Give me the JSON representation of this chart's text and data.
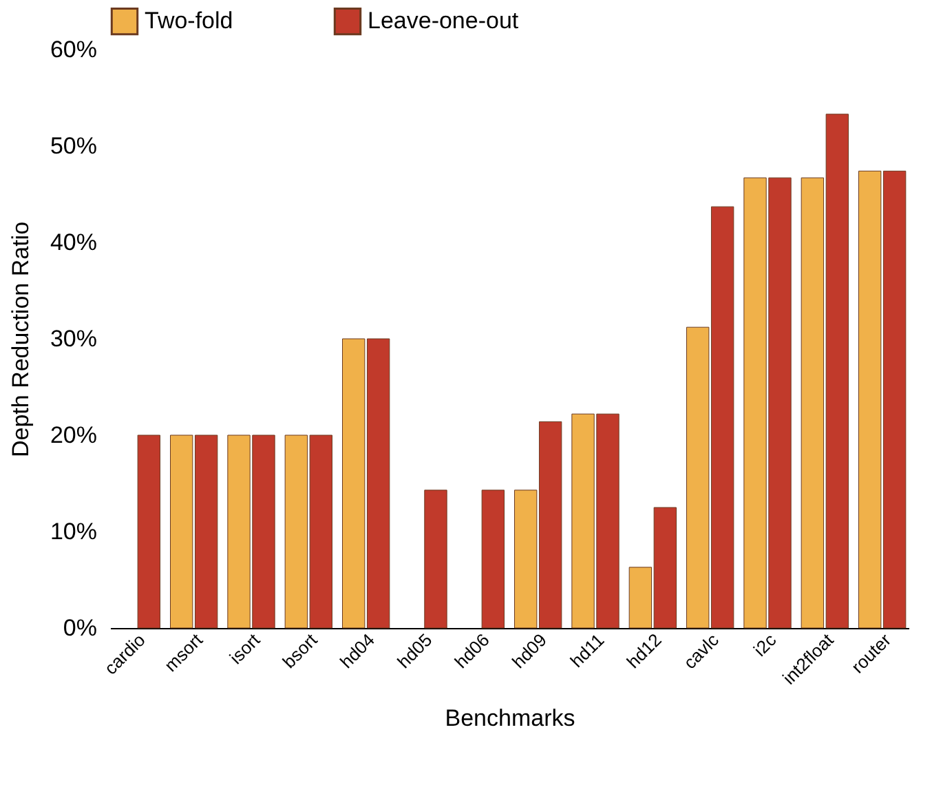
{
  "chart_data": {
    "type": "bar",
    "xlabel": "Benchmarks",
    "ylabel": "Depth Reduction Ratio",
    "categories": [
      "cardio",
      "msort",
      "isort",
      "bsort",
      "hd04",
      "hd05",
      "hd06",
      "hd09",
      "hd11",
      "hd12",
      "cavlc",
      "i2c",
      "int2float",
      "router"
    ],
    "series": [
      {
        "name": "Two-fold",
        "color": "#f0b14a",
        "values": [
          null,
          20,
          20,
          20,
          30,
          null,
          null,
          14.3,
          22.2,
          6.3,
          31.2,
          46.7,
          46.7,
          47.4
        ]
      },
      {
        "name": "Leave-one-out",
        "color": "#c13a2b",
        "values": [
          20,
          20,
          20,
          20,
          30,
          14.3,
          14.3,
          21.4,
          22.2,
          12.5,
          43.7,
          46.7,
          53.3,
          47.4
        ]
      }
    ],
    "ylim": [
      0,
      60
    ],
    "yticks": [
      {
        "value": 0,
        "label": "0%"
      },
      {
        "value": 10,
        "label": "10%"
      },
      {
        "value": 20,
        "label": "20%"
      },
      {
        "value": 30,
        "label": "30%"
      },
      {
        "value": 40,
        "label": "40%"
      },
      {
        "value": 50,
        "label": "50%"
      },
      {
        "value": 60,
        "label": "60%"
      }
    ],
    "grid": false,
    "legend": "top"
  }
}
